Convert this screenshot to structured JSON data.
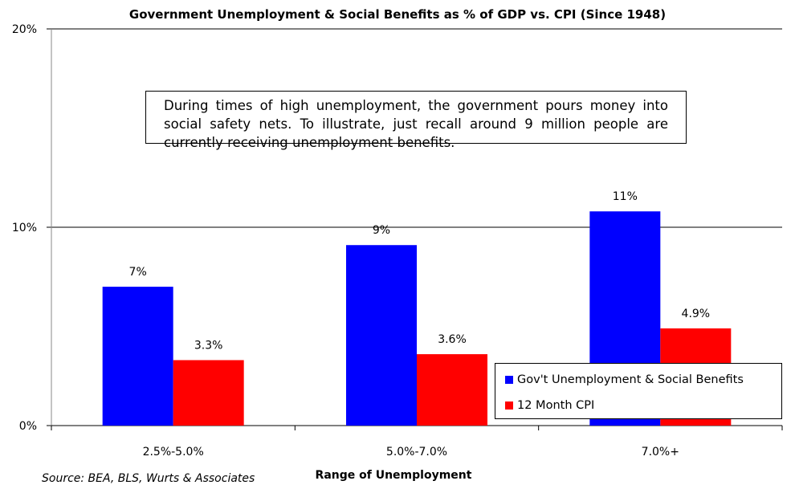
{
  "chart_data": {
    "type": "bar",
    "title": "Government Unemployment & Social Benefits as % of GDP vs. CPI (Since 1948)",
    "xlabel": "Range of Unemployment",
    "ylabel": "",
    "categories": [
      "2.5%-5.0%",
      "5.0%-7.0%",
      "7.0%+"
    ],
    "series": [
      {
        "name": "Gov't Unemployment & Social Benefits",
        "values": [
          7.0,
          9.1,
          10.8
        ],
        "labels": [
          "7%",
          "9%",
          "11%"
        ],
        "color": "#0000ff"
      },
      {
        "name": "12 Month CPI",
        "values": [
          3.3,
          3.6,
          4.9
        ],
        "labels": [
          "3.3%",
          "3.6%",
          "4.9%"
        ],
        "color": "#ff0000"
      }
    ],
    "ylim": [
      0,
      20
    ],
    "yticks": [
      0,
      10,
      20
    ],
    "ytick_labels": [
      "0%",
      "10%",
      "20%"
    ],
    "grid": true,
    "legend_position": "bottom-right"
  },
  "annotation": "During times of high unemployment, the government pours money into social safety nets. To illustrate, just recall around 9 million people are currently receiving unemployment benefits.",
  "source": "Source: BEA, BLS, Wurts & Associates"
}
